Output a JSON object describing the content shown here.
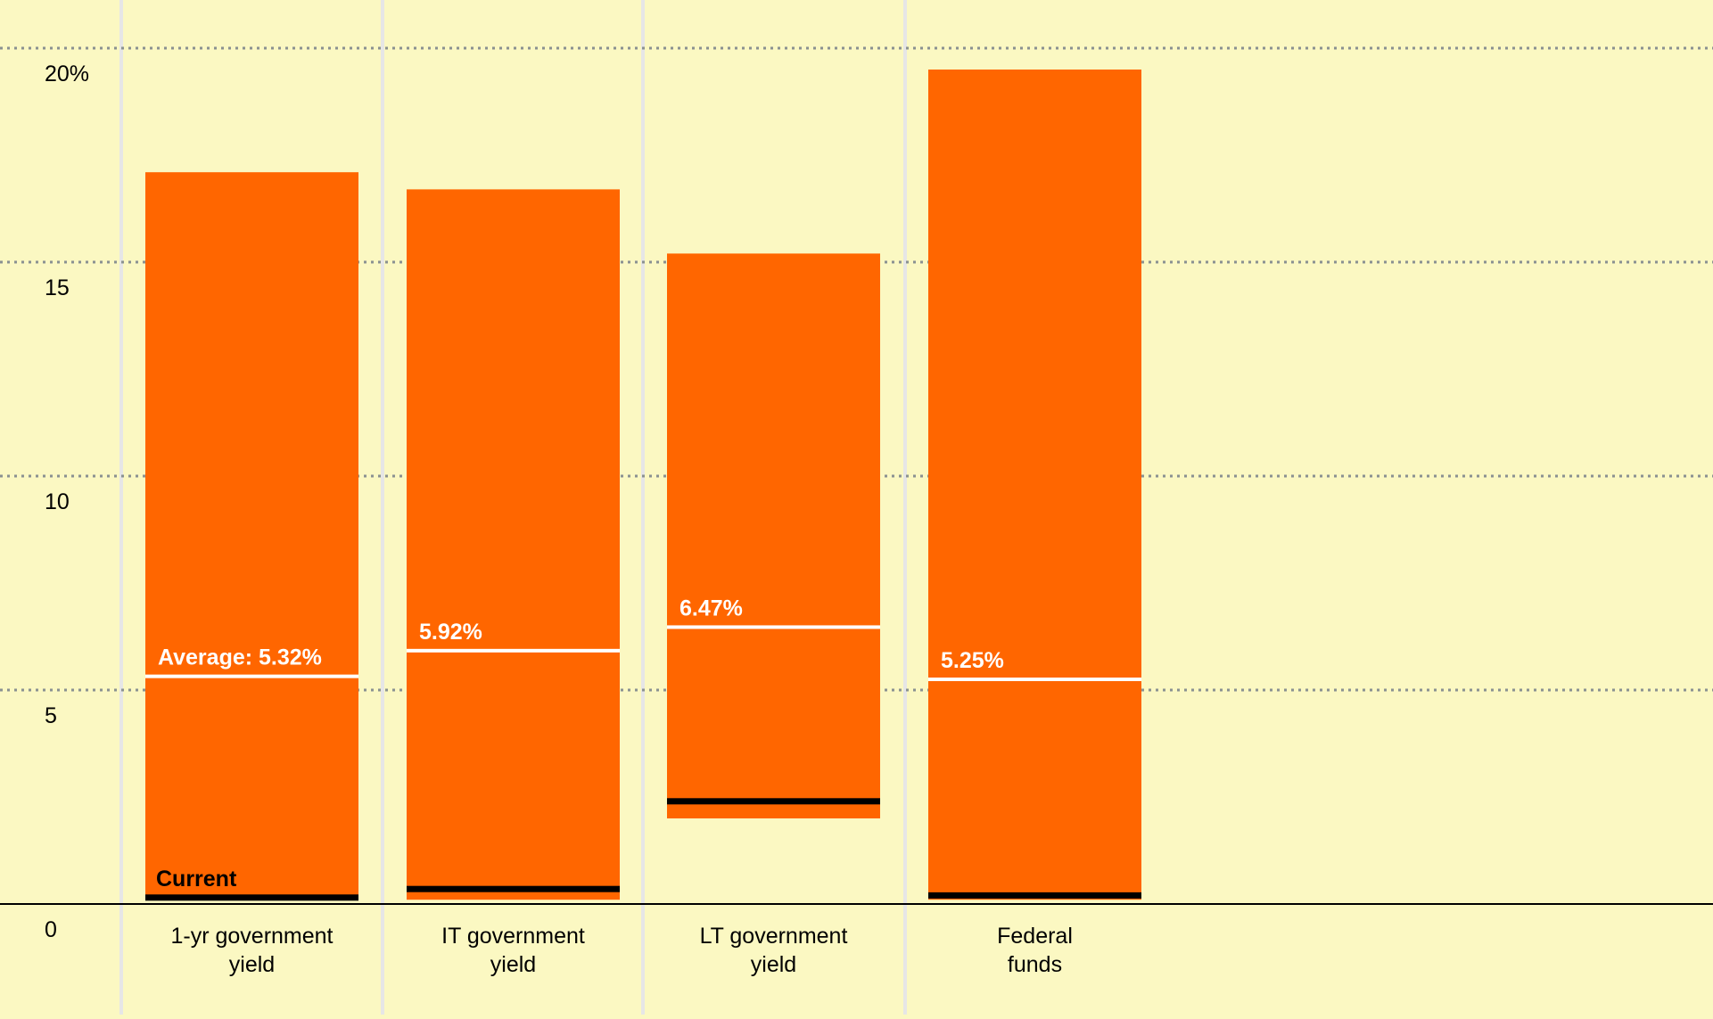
{
  "chart_data": {
    "type": "bar",
    "title": "",
    "xlabel": "",
    "ylabel": "",
    "ylim": [
      0,
      20
    ],
    "ytick_labels": [
      {
        "value": 0,
        "label": "0"
      },
      {
        "value": 5,
        "label": "5"
      },
      {
        "value": 10,
        "label": "10"
      },
      {
        "value": 15,
        "label": "15"
      },
      {
        "value": 20,
        "label": "20%"
      }
    ],
    "grid": true,
    "categories": [
      {
        "line1": "1-yr government",
        "line2": "yield"
      },
      {
        "line1": "IT government",
        "line2": "yield"
      },
      {
        "line1": "LT government",
        "line2": "yield"
      },
      {
        "line1": "Federal",
        "line2": "funds"
      }
    ],
    "ranges": [
      {
        "low": 0.1,
        "high": 17.1,
        "average": 5.32,
        "average_label": "Average: 5.32%",
        "current": 0.15,
        "current_label": "Current"
      },
      {
        "low": 0.1,
        "high": 16.7,
        "average": 5.92,
        "average_label": "5.92%",
        "current": 0.35,
        "current_label": ""
      },
      {
        "low": 2.0,
        "high": 15.2,
        "average": 6.47,
        "average_label": "6.47%",
        "current": 2.4,
        "current_label": ""
      },
      {
        "low": 0.1,
        "high": 19.5,
        "average": 5.25,
        "average_label": "5.25%",
        "current": 0.2,
        "current_label": ""
      }
    ],
    "colors": {
      "background": "#fbf8c2",
      "bar": "#ff6600",
      "average_line": "#ffffff",
      "current_line": "#000000",
      "grid": "#8a9191",
      "separator": "#e6e6e6",
      "axis": "#000000"
    }
  }
}
